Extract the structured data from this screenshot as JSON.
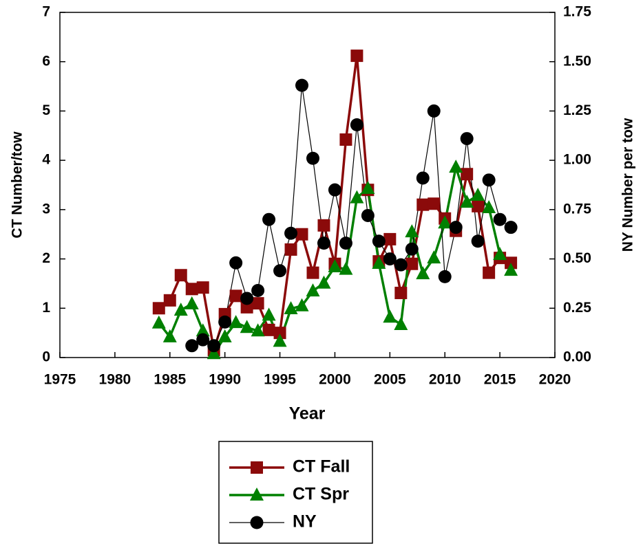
{
  "chart_data": {
    "type": "line",
    "x_label": "Year",
    "y_label": "CT Number/tow",
    "y2_label": "NY Number per tow",
    "xlim": [
      1975,
      2020
    ],
    "xticks": [
      1975,
      1980,
      1985,
      1990,
      1995,
      2000,
      2005,
      2010,
      2015,
      2020
    ],
    "ylim": [
      0,
      7
    ],
    "yticks": [
      0,
      1,
      2,
      3,
      4,
      5,
      6,
      7
    ],
    "y2lim": [
      0,
      1.75
    ],
    "y2ticks": [
      {
        "value": 0,
        "label": "0.00"
      },
      {
        "value": 0.25,
        "label": "0.25"
      },
      {
        "value": 0.5,
        "label": "0.50"
      },
      {
        "value": 0.75,
        "label": "0.75"
      },
      {
        "value": 1,
        "label": "1.00"
      },
      {
        "value": 1.25,
        "label": "1.25"
      },
      {
        "value": 1.5,
        "label": "1.50"
      },
      {
        "value": 1.75,
        "label": "1.75"
      }
    ],
    "series": [
      {
        "name": "CT Fall",
        "color": "#8b0a0a",
        "marker": "square",
        "x": [
          1984,
          1985,
          1986,
          1987,
          1988,
          1989,
          1990,
          1991,
          1992,
          1993,
          1994,
          1995,
          1996,
          1997,
          1998,
          1999,
          2000,
          2001,
          2002,
          2003,
          2004,
          2005,
          2006,
          2007,
          2008,
          2009,
          2010,
          2011,
          2012,
          2013,
          2014,
          2015,
          2016
        ],
        "values": [
          1.0,
          1.16,
          1.67,
          1.39,
          1.42,
          0.15,
          0.88,
          1.25,
          1.02,
          1.1,
          0.56,
          0.5,
          2.19,
          2.5,
          1.72,
          2.68,
          1.9,
          4.42,
          6.12,
          3.4,
          1.95,
          2.4,
          1.31,
          1.9,
          3.1,
          3.12,
          2.82,
          2.57,
          3.72,
          3.07,
          1.72,
          2.02,
          1.92
        ]
      },
      {
        "name": "CT Spr",
        "color": "#008000",
        "marker": "triangle",
        "x": [
          1984,
          1985,
          1986,
          1987,
          1988,
          1989,
          1990,
          1991,
          1992,
          1993,
          1994,
          1995,
          1996,
          1997,
          1998,
          1999,
          2000,
          2001,
          2002,
          2003,
          2004,
          2005,
          2006,
          2007,
          2008,
          2009,
          2010,
          2011,
          2012,
          2013,
          2014,
          2015,
          2016
        ],
        "values": [
          0.7,
          0.42,
          0.96,
          1.09,
          0.54,
          0.08,
          0.42,
          0.71,
          0.61,
          0.54,
          0.86,
          0.33,
          0.99,
          1.05,
          1.35,
          1.51,
          1.84,
          1.79,
          3.24,
          3.43,
          1.91,
          0.82,
          0.67,
          2.55,
          1.7,
          2.02,
          2.73,
          3.86,
          3.15,
          3.29,
          3.04,
          2.09,
          1.77
        ]
      },
      {
        "name": "NY",
        "color": "#000000",
        "marker": "circle",
        "axis": "y2",
        "x": [
          1987,
          1988,
          1989,
          1990,
          1991,
          1992,
          1993,
          1994,
          1995,
          1996,
          1997,
          1998,
          1999,
          2000,
          2001,
          2002,
          2003,
          2004,
          2005,
          2006,
          2007,
          2008,
          2009,
          2010,
          2011,
          2012,
          2013,
          2014,
          2015,
          2016
        ],
        "values": [
          0.06,
          0.09,
          0.06,
          0.18,
          0.48,
          0.3,
          0.34,
          0.7,
          0.44,
          0.63,
          1.38,
          1.01,
          0.58,
          0.85,
          0.58,
          1.18,
          0.72,
          0.59,
          0.5,
          0.47,
          0.55,
          0.91,
          1.25,
          0.41,
          0.66,
          1.11,
          0.59,
          0.9,
          0.7,
          0.66
        ]
      }
    ]
  }
}
